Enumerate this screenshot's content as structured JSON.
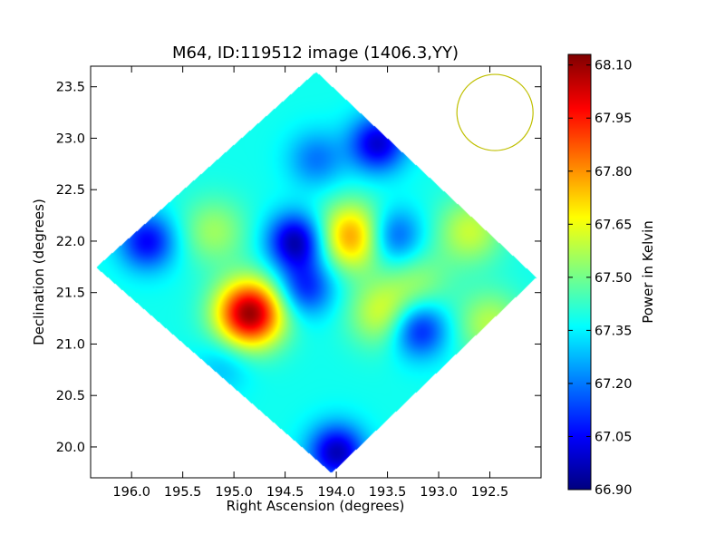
{
  "chart_data": {
    "type": "heatmap",
    "title": "M64, ID:119512 image (1406.3,YY)",
    "xlabel": "Right Ascension (degrees)",
    "ylabel": "Declination (degrees)",
    "colorbar_label": "Power in Kelvin",
    "xlim": [
      196.4,
      192.0
    ],
    "ylim": [
      19.7,
      23.7
    ],
    "x_ticks": [
      "196.0",
      "195.5",
      "195.0",
      "194.5",
      "194.0",
      "193.5",
      "193.0",
      "192.5"
    ],
    "x_tick_values": [
      196.0,
      195.5,
      195.0,
      194.5,
      194.0,
      193.5,
      193.0,
      192.5
    ],
    "y_ticks": [
      "20.0",
      "20.5",
      "21.0",
      "21.5",
      "22.0",
      "22.5",
      "23.0",
      "23.5"
    ],
    "y_tick_values": [
      20.0,
      20.5,
      21.0,
      21.5,
      22.0,
      22.5,
      23.0,
      23.5
    ],
    "colorbar_range": [
      66.9,
      68.13
    ],
    "colorbar_ticks": [
      "66.90",
      "67.05",
      "67.20",
      "67.35",
      "67.50",
      "67.65",
      "67.80",
      "67.95",
      "68.10"
    ],
    "colorbar_tick_values": [
      66.9,
      67.05,
      67.2,
      67.35,
      67.5,
      67.65,
      67.8,
      67.95,
      68.1
    ],
    "colormap": "jet",
    "colormap_stops": [
      "#00007f",
      "#0000ff",
      "#007fff",
      "#00ffff",
      "#7fff7f",
      "#ffff00",
      "#ff7f00",
      "#ff0000",
      "#7f0000"
    ],
    "footprint_corners": {
      "top": [
        194.2,
        23.65
      ],
      "right": [
        192.05,
        21.65
      ],
      "bottom": [
        194.05,
        19.75
      ],
      "left": [
        196.35,
        21.75
      ]
    },
    "background_level": 67.38,
    "features": [
      {
        "ra": 194.85,
        "dec": 21.3,
        "value": 68.1,
        "kind": "peak"
      },
      {
        "ra": 193.85,
        "dec": 22.05,
        "value": 67.8,
        "kind": "peak"
      },
      {
        "ra": 193.55,
        "dec": 21.3,
        "value": 67.62,
        "kind": "peak"
      },
      {
        "ra": 192.7,
        "dec": 22.1,
        "value": 67.6,
        "kind": "peak"
      },
      {
        "ra": 192.5,
        "dec": 21.2,
        "value": 67.58,
        "kind": "peak"
      },
      {
        "ra": 195.2,
        "dec": 22.1,
        "value": 67.55,
        "kind": "peak"
      },
      {
        "ra": 193.2,
        "dec": 21.6,
        "value": 67.52,
        "kind": "peak"
      },
      {
        "ra": 194.4,
        "dec": 22.0,
        "value": 66.95,
        "kind": "trough"
      },
      {
        "ra": 193.6,
        "dec": 22.95,
        "value": 67.0,
        "kind": "trough"
      },
      {
        "ra": 194.0,
        "dec": 19.95,
        "value": 66.97,
        "kind": "trough"
      },
      {
        "ra": 195.85,
        "dec": 22.0,
        "value": 67.05,
        "kind": "trough"
      },
      {
        "ra": 193.2,
        "dec": 21.15,
        "value": 67.05,
        "kind": "trough"
      },
      {
        "ra": 193.45,
        "dec": 22.05,
        "value": 67.12,
        "kind": "trough"
      },
      {
        "ra": 194.3,
        "dec": 21.55,
        "value": 67.1,
        "kind": "trough"
      },
      {
        "ra": 194.2,
        "dec": 22.8,
        "value": 67.2,
        "kind": "trough"
      },
      {
        "ra": 195.1,
        "dec": 20.8,
        "value": 67.28,
        "kind": "trough"
      }
    ],
    "beam_circle": {
      "ra": 192.45,
      "dec": 23.25,
      "radius_deg": 0.37,
      "color": "#bfbf00"
    }
  }
}
